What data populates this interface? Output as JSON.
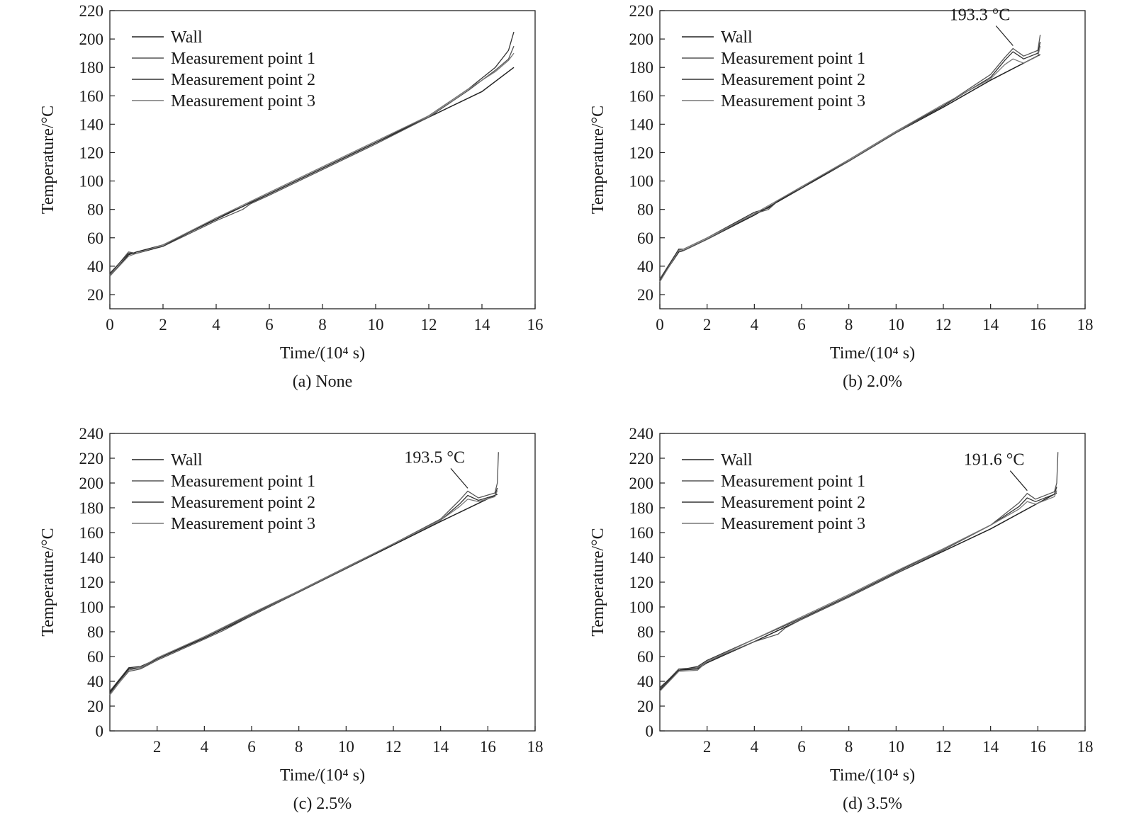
{
  "figure": {
    "colors": {
      "ink": "#1a1a1a",
      "line": "#3a3a3a",
      "frame": "#222222"
    }
  },
  "chart_data": [
    {
      "id": "a",
      "type": "line",
      "caption": "(a) None",
      "xlabel": "Time/(10⁴ s)",
      "ylabel": "Temperature/°C",
      "xlim": [
        0,
        16
      ],
      "ylim": [
        10,
        220
      ],
      "xticks": [
        "0",
        "2",
        "4",
        "6",
        "8",
        "10",
        "12",
        "14",
        "16"
      ],
      "yticks": [
        "20",
        "40",
        "60",
        "80",
        "100",
        "120",
        "140",
        "160",
        "180",
        "200",
        "220"
      ],
      "legend": [
        "Wall",
        "Measurement point 1",
        "Measurement point 2",
        "Measurement point 3"
      ],
      "legend_position": "top-left",
      "annotation": null,
      "series": [
        {
          "name": "Wall",
          "x": [
            0,
            0.7,
            1,
            2,
            4,
            6,
            8,
            10,
            12,
            14,
            15.2
          ],
          "y": [
            33,
            48,
            50,
            55,
            73,
            91,
            109,
            127,
            145,
            163,
            180
          ]
        },
        {
          "name": "Measurement point 1",
          "x": [
            0,
            0.7,
            1,
            2,
            4,
            5,
            5.3,
            6,
            8,
            10,
            12,
            13.5,
            14.5,
            15,
            15.2
          ],
          "y": [
            34,
            50,
            49,
            54,
            72,
            80,
            84,
            90,
            108,
            126,
            145,
            164,
            178,
            186,
            195
          ]
        },
        {
          "name": "Measurement point 2",
          "x": [
            0,
            0.7,
            1,
            2,
            4,
            5,
            5.3,
            6,
            8,
            10,
            12,
            13.5,
            14.5,
            15,
            15.2
          ],
          "y": [
            35,
            49,
            49,
            54,
            74,
            82,
            85,
            91,
            109,
            127,
            146,
            165,
            180,
            192,
            205
          ]
        },
        {
          "name": "Measurement point 3",
          "x": [
            0,
            0.7,
            1,
            2,
            4,
            6,
            8,
            10,
            12,
            13.5,
            14.5,
            15,
            15.2
          ],
          "y": [
            33,
            47,
            49,
            55,
            74,
            92,
            110,
            128,
            146,
            165,
            177,
            185,
            190
          ]
        }
      ]
    },
    {
      "id": "b",
      "type": "line",
      "caption": "(b) 2.0%",
      "xlabel": "Time/(10⁴ s)",
      "ylabel": "Temperature/°C",
      "xlim": [
        0,
        18
      ],
      "ylim": [
        10,
        220
      ],
      "xticks": [
        "0",
        "2",
        "4",
        "6",
        "8",
        "10",
        "12",
        "14",
        "16",
        "18"
      ],
      "yticks": [
        "20",
        "40",
        "60",
        "80",
        "100",
        "120",
        "140",
        "160",
        "180",
        "200",
        "220"
      ],
      "legend": [
        "Wall",
        "Measurement point 1",
        "Measurement point 2",
        "Measurement point 3"
      ],
      "legend_position": "top-left",
      "annotation": {
        "text": "193.3 °C",
        "x": 14.95,
        "y": 193.3
      },
      "series": [
        {
          "name": "Wall",
          "x": [
            0,
            0.8,
            1,
            2,
            4,
            6,
            8,
            10,
            12,
            14,
            16.1
          ],
          "y": [
            30,
            50,
            51,
            59,
            76,
            95,
            114,
            134,
            152,
            171,
            189
          ]
        },
        {
          "name": "Measurement point 1",
          "x": [
            0,
            0.8,
            1,
            2,
            4,
            4.6,
            5,
            6,
            8,
            10,
            12,
            14,
            14.6,
            14.95,
            15.4,
            16,
            16.1
          ],
          "y": [
            31,
            52,
            51,
            59,
            77,
            80,
            86,
            96,
            114,
            134,
            153,
            175,
            187,
            193.3,
            188,
            192,
            203
          ]
        },
        {
          "name": "Measurement point 2",
          "x": [
            0,
            0.8,
            1,
            2,
            4,
            4.6,
            5,
            6,
            8,
            10,
            12,
            14,
            14.6,
            14.95,
            15.4,
            16,
            16.1
          ],
          "y": [
            30,
            52,
            52,
            60,
            78,
            81,
            86,
            95,
            115,
            135,
            153,
            173,
            185,
            191,
            186,
            190,
            198
          ]
        },
        {
          "name": "Measurement point 3",
          "x": [
            0,
            0.8,
            1,
            2,
            4,
            6,
            8,
            10,
            12,
            14,
            14.6,
            14.95,
            15.4,
            16,
            16.1
          ],
          "y": [
            29,
            51,
            52,
            60,
            77,
            96,
            115,
            135,
            154,
            172,
            182,
            186,
            183,
            188,
            195
          ]
        }
      ]
    },
    {
      "id": "c",
      "type": "line",
      "caption": "(c) 2.5%",
      "xlabel": "Time/(10⁴ s)",
      "ylabel": "Temperature/°C",
      "xlim": [
        0,
        18
      ],
      "ylim": [
        0,
        240
      ],
      "xticks": [
        "2",
        "4",
        "6",
        "8",
        "10",
        "12",
        "14",
        "16",
        "18"
      ],
      "yticks": [
        "0",
        "20",
        "40",
        "60",
        "80",
        "100",
        "120",
        "140",
        "160",
        "180",
        "200",
        "220",
        "240"
      ],
      "legend": [
        "Wall",
        "Measurement point 1",
        "Measurement point 2",
        "Measurement point 3"
      ],
      "legend_position": "top-left",
      "annotation": {
        "text": "193.5 °C",
        "x": 15.15,
        "y": 193.5
      },
      "series": [
        {
          "name": "Wall",
          "x": [
            0,
            0.8,
            1.3,
            2,
            4,
            6,
            8,
            10,
            12,
            14,
            16.4
          ],
          "y": [
            31,
            50,
            51,
            58,
            75,
            93,
            112,
            131,
            150,
            169,
            191
          ]
        },
        {
          "name": "Measurement point 1",
          "x": [
            0,
            0.8,
            1.3,
            2,
            4,
            4.8,
            5.2,
            6,
            8,
            10,
            12,
            14,
            14.8,
            15.15,
            15.6,
            16.3,
            16.4,
            16.45
          ],
          "y": [
            30,
            48,
            50,
            57,
            74,
            81,
            85,
            93,
            112,
            131,
            151,
            171,
            186,
            193.5,
            188,
            192,
            200,
            225
          ]
        },
        {
          "name": "Measurement point 2",
          "x": [
            0,
            0.8,
            1.3,
            2,
            4,
            6,
            8,
            10,
            12,
            14,
            14.8,
            15.15,
            15.6,
            16.3,
            16.4
          ],
          "y": [
            32,
            51,
            52,
            58,
            76,
            94,
            113,
            132,
            151,
            170,
            183,
            190,
            186,
            190,
            196
          ]
        },
        {
          "name": "Measurement point 3",
          "x": [
            0,
            0.8,
            1.3,
            2,
            4,
            6,
            8,
            10,
            12,
            14,
            14.8,
            15.15,
            15.6,
            16.3,
            16.4
          ],
          "y": [
            29,
            49,
            51,
            59,
            76,
            95,
            113,
            132,
            151,
            170,
            181,
            187,
            185,
            189,
            194
          ]
        }
      ]
    },
    {
      "id": "d",
      "type": "line",
      "caption": "(d) 3.5%",
      "xlabel": "Time/(10⁴ s)",
      "ylabel": "Temperature/°C",
      "xlim": [
        0,
        18
      ],
      "ylim": [
        0,
        240
      ],
      "xticks": [
        "2",
        "4",
        "6",
        "8",
        "10",
        "12",
        "14",
        "16",
        "18"
      ],
      "yticks": [
        "0",
        "20",
        "40",
        "60",
        "80",
        "100",
        "120",
        "140",
        "160",
        "180",
        "200",
        "220",
        "240"
      ],
      "legend": [
        "Wall",
        "Measurement point 1",
        "Measurement point 2",
        "Measurement point 3"
      ],
      "legend_position": "top-left",
      "annotation": {
        "text": "191.6 °C",
        "x": 15.55,
        "y": 191.6
      },
      "series": [
        {
          "name": "Wall",
          "x": [
            0,
            0.8,
            1.6,
            2,
            4,
            6,
            8,
            10,
            12,
            14,
            16.8
          ],
          "y": [
            33,
            49,
            50,
            55,
            72,
            90,
            108,
            127,
            145,
            163,
            192
          ]
        },
        {
          "name": "Measurement point 1",
          "x": [
            0,
            0.8,
            1.6,
            2,
            4,
            5,
            5.3,
            6,
            8,
            10,
            12,
            14,
            15.2,
            15.55,
            15.9,
            16.7,
            16.8,
            16.85
          ],
          "y": [
            34,
            50,
            51,
            56,
            72,
            78,
            83,
            90,
            108,
            127,
            146,
            166,
            184,
            191.6,
            187,
            193,
            200,
            225
          ]
        },
        {
          "name": "Measurement point 2",
          "x": [
            0,
            0.8,
            1.6,
            2,
            4,
            6,
            8,
            10,
            12,
            14,
            15.2,
            15.55,
            15.9,
            16.7,
            16.8
          ],
          "y": [
            35,
            49,
            52,
            57,
            74,
            91,
            109,
            128,
            147,
            166,
            181,
            188,
            185,
            191,
            197
          ]
        },
        {
          "name": "Measurement point 3",
          "x": [
            0,
            0.8,
            1.6,
            2,
            4,
            6,
            8,
            10,
            12,
            14,
            15.2,
            15.55,
            15.9,
            16.7,
            16.8
          ],
          "y": [
            32,
            48,
            49,
            56,
            74,
            92,
            110,
            129,
            147,
            166,
            179,
            185,
            183,
            189,
            194
          ]
        }
      ]
    }
  ]
}
